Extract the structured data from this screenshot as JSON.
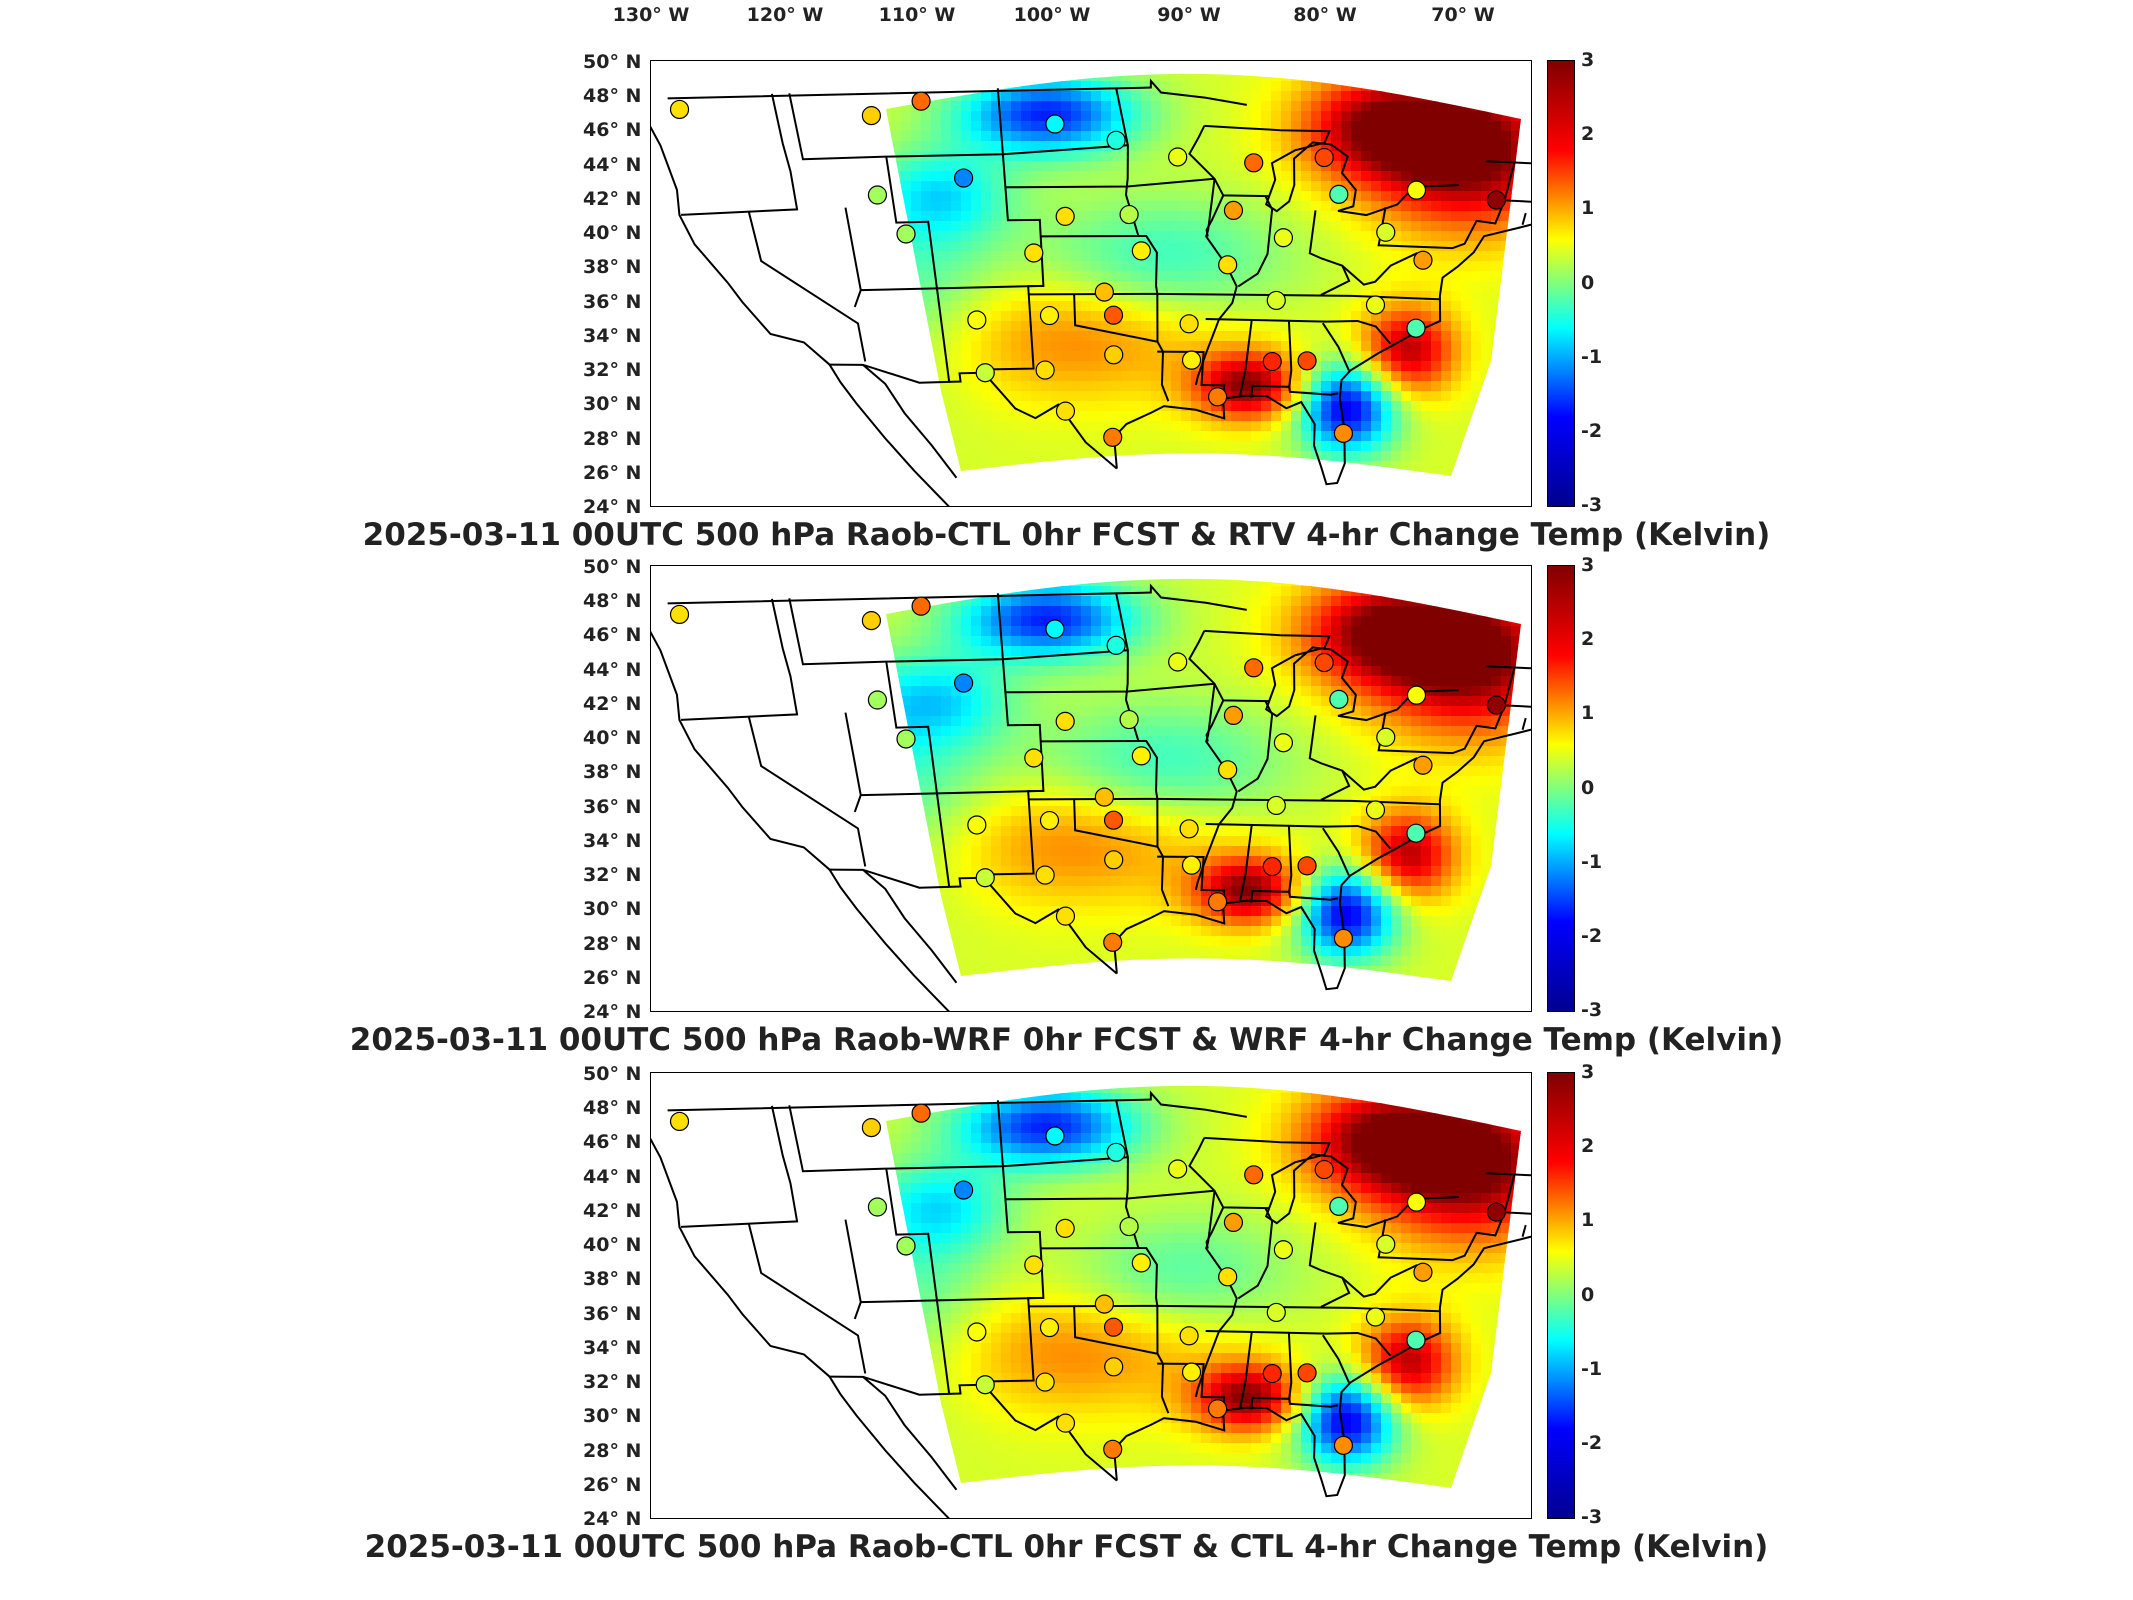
{
  "longitude_axis": [
    "130° W",
    "120° W",
    "110° W",
    "100° W",
    "90° W",
    "80° W",
    "70° W"
  ],
  "latitude_axis": [
    "50° N",
    "48° N",
    "46° N",
    "44° N",
    "42° N",
    "40° N",
    "38° N",
    "36° N",
    "34° N",
    "32° N",
    "30° N",
    "28° N",
    "26° N",
    "24° N"
  ],
  "colorbar": {
    "ticks": [
      "3",
      "2",
      "1",
      "0",
      "-1",
      "-2",
      "-3"
    ],
    "range": [
      -3,
      3
    ],
    "colormap": "jet",
    "colors": [
      "#00008f",
      "#0000ff",
      "#00ffff",
      "#ffff00",
      "#ff0000",
      "#800000"
    ]
  },
  "panels": [
    {
      "title": "2025-03-11 00UTC 500 hPa Raob-CTL 0hr FCST & RTV 4-hr Change Temp (Kelvin)"
    },
    {
      "title": "2025-03-11 00UTC 500 hPa Raob-WRF 0hr FCST & WRF 4-hr Change Temp (Kelvin)"
    },
    {
      "title": "2025-03-11 00UTC 500 hPa Raob-CTL 0hr FCST & CTL 4-hr Change Temp (Kelvin)"
    }
  ],
  "raob_stations": [
    {
      "lon": -122.5,
      "lat": 48.3,
      "value": 0.9
    },
    {
      "lon": -111.5,
      "lat": 47.5,
      "value": 1.0
    },
    {
      "lon": -108.5,
      "lat": 48.3,
      "value": 1.6
    },
    {
      "lon": -100.8,
      "lat": 46.8,
      "value": -0.8
    },
    {
      "lon": -97.2,
      "lat": 45.8,
      "value": -0.6
    },
    {
      "lon": -93.5,
      "lat": 44.8,
      "value": 0.6
    },
    {
      "lon": -88.9,
      "lat": 44.5,
      "value": 1.6
    },
    {
      "lon": -84.7,
      "lat": 44.9,
      "value": 1.8
    },
    {
      "lon": -106.5,
      "lat": 43.6,
      "value": -1.5
    },
    {
      "lon": -111.9,
      "lat": 42.7,
      "value": 0.2
    },
    {
      "lon": -100.4,
      "lat": 41.2,
      "value": 0.9
    },
    {
      "lon": -96.4,
      "lat": 41.3,
      "value": 0.3
    },
    {
      "lon": -89.9,
      "lat": 41.6,
      "value": 1.3
    },
    {
      "lon": -83.5,
      "lat": 42.7,
      "value": -0.3
    },
    {
      "lon": -78.8,
      "lat": 43.1,
      "value": 0.7
    },
    {
      "lon": -73.8,
      "lat": 42.7,
      "value": 2.9
    },
    {
      "lon": -110.5,
      "lat": 40.3,
      "value": 0.2
    },
    {
      "lon": -86.6,
      "lat": 40.0,
      "value": 0.6
    },
    {
      "lon": -80.2,
      "lat": 40.5,
      "value": 0.5
    },
    {
      "lon": -102.5,
      "lat": 39.0,
      "value": 0.9
    },
    {
      "lon": -95.6,
      "lat": 39.1,
      "value": 0.8
    },
    {
      "lon": -90.0,
      "lat": 38.3,
      "value": 0.9
    },
    {
      "lon": -77.5,
      "lat": 38.9,
      "value": 1.3
    },
    {
      "lon": -98.0,
      "lat": 36.6,
      "value": 1.1
    },
    {
      "lon": -106.6,
      "lat": 35.0,
      "value": 0.7
    },
    {
      "lon": -101.7,
      "lat": 35.2,
      "value": 0.8
    },
    {
      "lon": -97.4,
      "lat": 35.2,
      "value": 1.7
    },
    {
      "lon": -92.3,
      "lat": 34.7,
      "value": 0.9
    },
    {
      "lon": -86.6,
      "lat": 36.2,
      "value": 0.5
    },
    {
      "lon": -80.0,
      "lat": 36.1,
      "value": 0.6
    },
    {
      "lon": -77.0,
      "lat": 34.8,
      "value": -0.3
    },
    {
      "lon": -102.2,
      "lat": 31.9,
      "value": 0.9
    },
    {
      "lon": -97.4,
      "lat": 32.8,
      "value": 1.0
    },
    {
      "lon": -92.0,
      "lat": 32.5,
      "value": 0.8
    },
    {
      "lon": -86.4,
      "lat": 32.5,
      "value": 2.0
    },
    {
      "lon": -84.0,
      "lat": 32.6,
      "value": 1.8
    },
    {
      "lon": -106.4,
      "lat": 31.8,
      "value": 0.4
    },
    {
      "lon": -100.9,
      "lat": 29.4,
      "value": 0.9
    },
    {
      "lon": -97.5,
      "lat": 27.8,
      "value": 1.5
    },
    {
      "lon": -90.0,
      "lat": 30.3,
      "value": 1.5
    },
    {
      "lon": -80.6,
      "lat": 28.3,
      "value": 1.4
    }
  ]
}
